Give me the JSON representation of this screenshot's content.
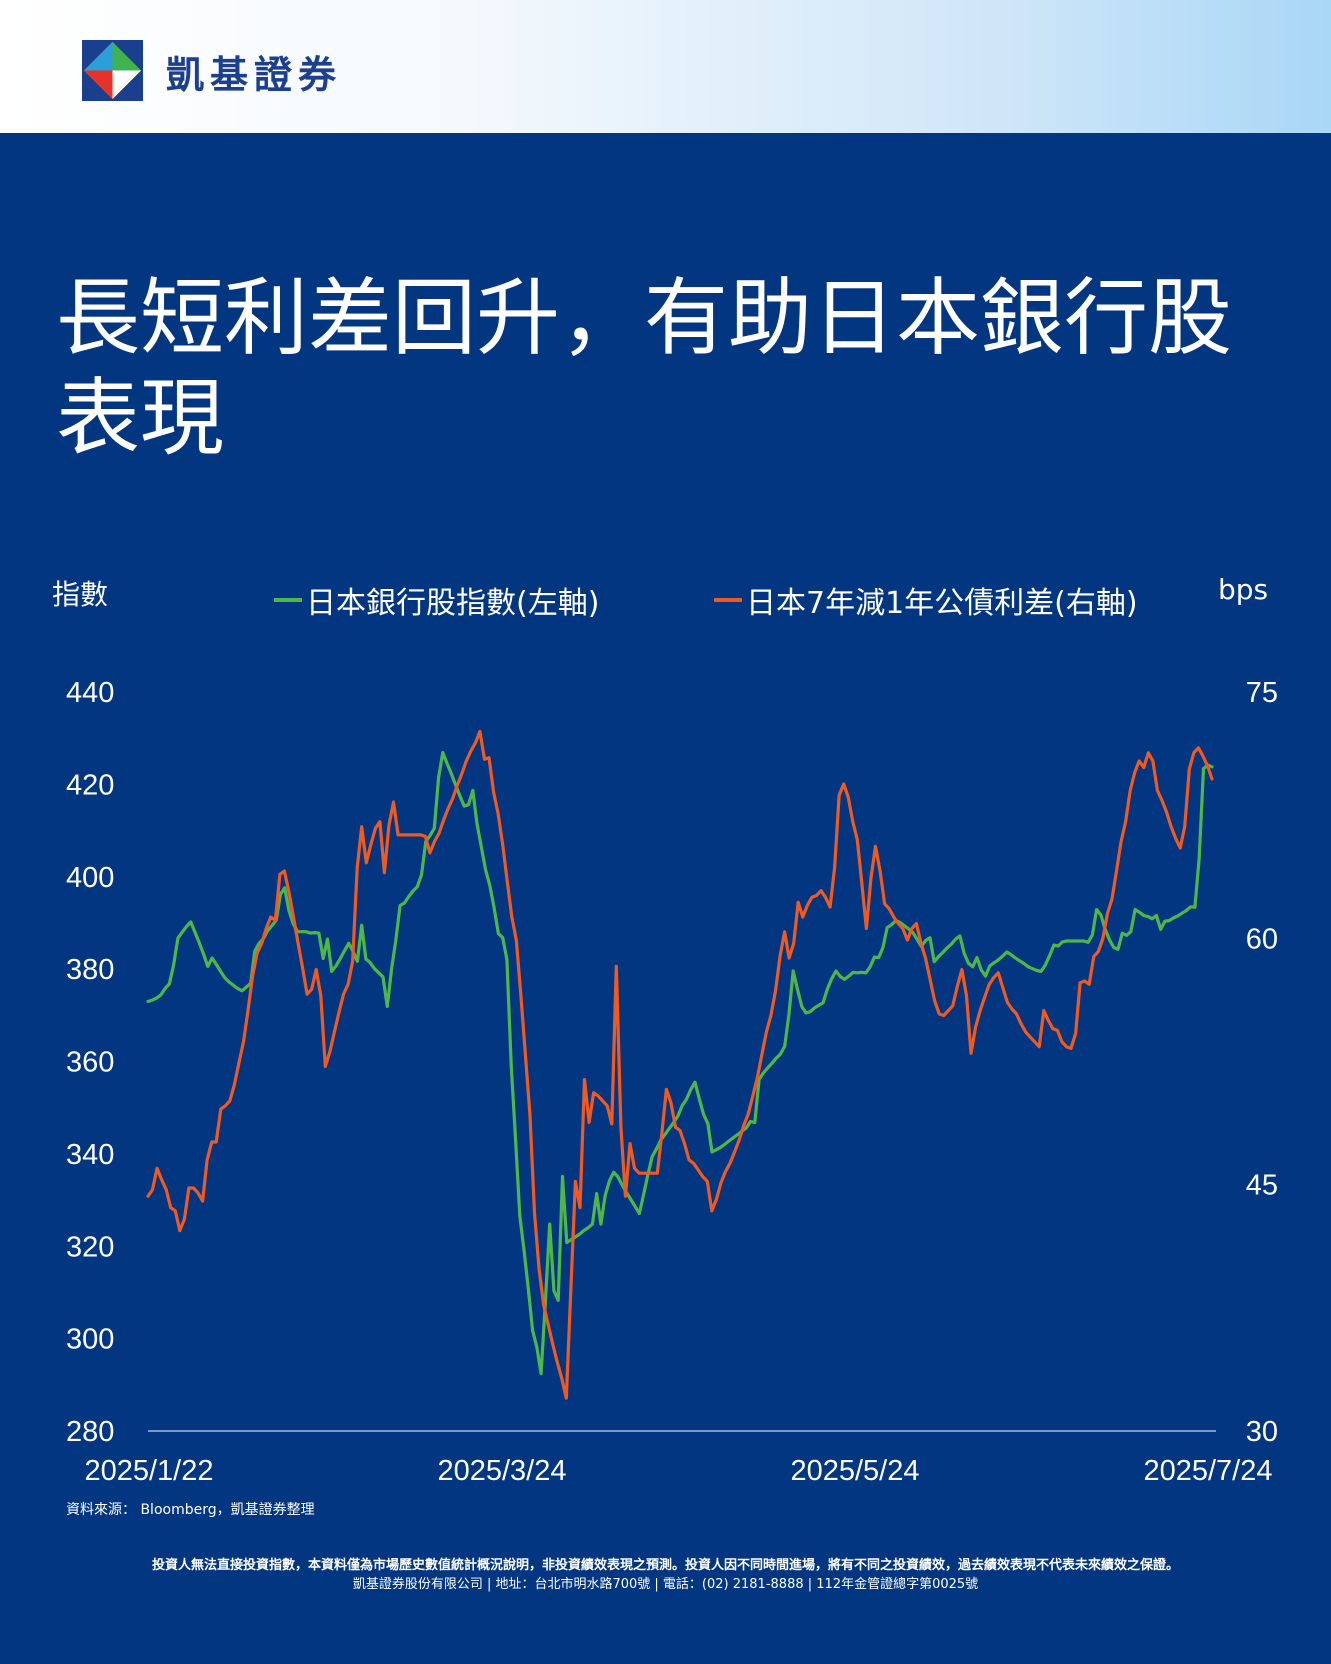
{
  "header": {
    "brand_name": "凱基證券",
    "logo_icon": "kgi-logo-icon"
  },
  "title": {
    "line1": "長短利差回升，有助日本銀行股",
    "line2": "表現"
  },
  "chart_data": {
    "type": "line",
    "left_axis_unit": "指數",
    "right_axis_unit": "bps",
    "x_tick_labels": [
      "2025/1/22",
      "2025/3/24",
      "2025/5/24",
      "2025/7/24"
    ],
    "left_ylim": [
      280,
      440
    ],
    "left_yticks": [
      280,
      300,
      320,
      340,
      360,
      380,
      400,
      420,
      440
    ],
    "right_ylim": [
      30,
      75
    ],
    "right_yticks": [
      30,
      45,
      60,
      75
    ],
    "legend_placement": "top",
    "grid": false,
    "series": [
      {
        "name": "日本銀行股指數(左軸)",
        "axis": "left",
        "color": "#4db848",
        "values": [
          373,
          373.3,
          373.7,
          374.4,
          375.8,
          376.8,
          380.9,
          386.7,
          388,
          389.2,
          390.2,
          388,
          385.7,
          383.2,
          380.6,
          382.4,
          381,
          379.5,
          378.1,
          377.2,
          376.5,
          375.8,
          375.3,
          376.1,
          376.9,
          383.9,
          385.6,
          386.6,
          388.3,
          389.4,
          390.6,
          396.2,
          397.6,
          392.6,
          389.8,
          388.1,
          388.1,
          388.1,
          387.8,
          387.9,
          387.8,
          382.3,
          386.5,
          379.5,
          380.7,
          382.3,
          384,
          385.6,
          383.8,
          381.7,
          389.5,
          382.2,
          381.4,
          380.1,
          379.2,
          378.3,
          371.9,
          380.1,
          386.2,
          393.8,
          394.3,
          395.7,
          396.9,
          397.8,
          400.4,
          407.6,
          408.9,
          410.5,
          421.5,
          426.9,
          424.5,
          422.3,
          419.8,
          417.5,
          415.3,
          415.6,
          418.7,
          411.5,
          406.5,
          401.5,
          398.1,
          393.3,
          387.7,
          386.8,
          382.1,
          359.2,
          343.4,
          326.6,
          319.2,
          310.8,
          301.8,
          298.1,
          292.4,
          308.1,
          324.8,
          310.4,
          308.3,
          335.1,
          320.8,
          321.4,
          322,
          322.6,
          323.4,
          324,
          324.8,
          331.4,
          324.8,
          331,
          334.2,
          336,
          335,
          333.2,
          331.6,
          330.1,
          328.6,
          327.1,
          331.3,
          335.6,
          339.4,
          341.1,
          343,
          344.2,
          345.5,
          346.8,
          348.2,
          350.4,
          351.8,
          353.9,
          355.5,
          352,
          348.6,
          346.6,
          340.4,
          340.9,
          341.4,
          342.1,
          342.8,
          343.5,
          344.2,
          344.9,
          345.6,
          347,
          346.8,
          356.1,
          357.5,
          358.6,
          359.6,
          360.7,
          361.6,
          363.3,
          370.3,
          379.6,
          375.6,
          371.9,
          370.5,
          370.8,
          371.6,
          372.2,
          372.7,
          375.7,
          377.9,
          379.6,
          378.4,
          377.8,
          378.5,
          379.3,
          379.2,
          379.3,
          379.2,
          380.5,
          382.6,
          382.5,
          384.7,
          389,
          389.6,
          390.5,
          390.1,
          389.4,
          388.7,
          387.9,
          386.4,
          384.9,
          386.2,
          386.8,
          381.6,
          382.7,
          383.6,
          384.6,
          385.4,
          386.5,
          387.2,
          383.4,
          381.3,
          380.5,
          382.5,
          379.8,
          378.5,
          380.7,
          381.4,
          382,
          382.8,
          383.7,
          383.1,
          382.4,
          381.8,
          381.2,
          380.5,
          380.1,
          379.7,
          379.5,
          380.9,
          382.9,
          385.2,
          385,
          385.9,
          386.1,
          386.1,
          386.1,
          386.1,
          386.1,
          385.8,
          387.4,
          392.9,
          391.7,
          388.6,
          386.4,
          384.7,
          384.3,
          387.8,
          387.3,
          388.1,
          392.9,
          392.3,
          391.6,
          391.4,
          390.9,
          391.6,
          388.6,
          390.4,
          390.5,
          391.1,
          391.5,
          392.1,
          392.7,
          393.5,
          393.4,
          404.1,
          423.4,
          424.2,
          423.8
        ],
        "note": "daily values"
      },
      {
        "name": "日本7年減1年公債利差(右軸)",
        "axis": "right",
        "color": "#ef5a23",
        "values": [
          44.3,
          44.7,
          46,
          45.3,
          44.7,
          43.6,
          43.4,
          42.2,
          42.9,
          44.8,
          44.8,
          44.5,
          44,
          46.5,
          47.6,
          47.6,
          49.6,
          49.8,
          50.1,
          51.1,
          52.4,
          53.7,
          55.6,
          57.7,
          59.1,
          59.7,
          60.6,
          61.3,
          61.1,
          63.9,
          64.1,
          62.8,
          61.3,
          59.7,
          58.2,
          56.6,
          56.9,
          58.1,
          56.5,
          52.2,
          53.1,
          54.3,
          55.5,
          56.6,
          57.2,
          58.6,
          64.3,
          66.8,
          64.6,
          65.7,
          66.7,
          67.1,
          64,
          66.9,
          68.3,
          66.3,
          66.3,
          66.3,
          66.3,
          66.3,
          66.3,
          66.2,
          65.2,
          65.9,
          66.4,
          67.2,
          67.9,
          68.5,
          69.3,
          70,
          70.8,
          71.4,
          71.9,
          72.6,
          70.9,
          71,
          68.9,
          67.6,
          65.7,
          63.5,
          61.3,
          59.9,
          56.5,
          52.9,
          49.3,
          43.3,
          39.9,
          37.7,
          36.5,
          35.3,
          34.2,
          33.2,
          32,
          38.7,
          45.2,
          43.6,
          51.4,
          48.8,
          50.6,
          50.4,
          50.1,
          49.8,
          48.7,
          58.3,
          48.5,
          44.3,
          47.5,
          46,
          45.7,
          45.7,
          45.7,
          45.7,
          45.7,
          48.1,
          50.8,
          50,
          48.5,
          48.3,
          47.5,
          46.5,
          46.3,
          45.9,
          45.5,
          45.2,
          43.4,
          44.1,
          45.1,
          45.8,
          46.3,
          47,
          47.7,
          48.6,
          49.3,
          50.4,
          51.5,
          52.9,
          54.3,
          55.3,
          56.8,
          58.9,
          60.4,
          58.8,
          59.7,
          62.2,
          61.3,
          62,
          62.5,
          62.6,
          62.9,
          62.5,
          61.9,
          64.3,
          68.7,
          69.4,
          68.6,
          67.1,
          66,
          63.3,
          60.6,
          63.7,
          65.6,
          64.1,
          62.1,
          61.8,
          61.3,
          60.9,
          60.6,
          59.9,
          60.6,
          60.9,
          59.7,
          58.8,
          57.5,
          56.2,
          55.4,
          55.3,
          55.6,
          55.9,
          57.1,
          58.1,
          56.5,
          53,
          54.6,
          55.6,
          56.4,
          57.2,
          57.6,
          57.9,
          57,
          56.1,
          55.7,
          55.4,
          54.8,
          54.3,
          54,
          53.7,
          53.4,
          55.6,
          55,
          54.5,
          54.4,
          53.7,
          53.4,
          53.3,
          54.2,
          57.3,
          57.4,
          57.2,
          58.9,
          59.2,
          60,
          61.5,
          62.4,
          64.1,
          65.9,
          67.1,
          69,
          70.1,
          70.8,
          70.4,
          71.3,
          70.8,
          69,
          68.4,
          67.7,
          66.8,
          66.1,
          65.5,
          66.8,
          70.3,
          71.3,
          71.6,
          71.1,
          70.5,
          69.7
        ]
      }
    ]
  },
  "footer": {
    "source": "資料來源： Bloomberg，凱基證券整理",
    "disclaimer_line1": "投資人無法直接投資指數，本資料僅為市場歷史數值統計概況說明，非投資績效表現之預測。投資人因不同時間進場，將有不同之投資績效，過去績效表現不代表未來績效之保證。",
    "disclaimer_line2": "凱基證券股份有限公司 | 地址：台北市明水路700號 | 電話：(02) 2181-8888 | 112年金管證總字第0025號"
  }
}
